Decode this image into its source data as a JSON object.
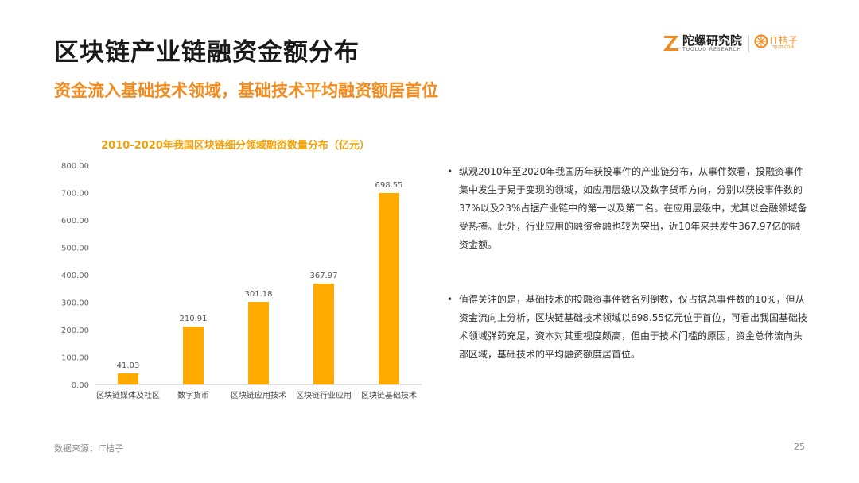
{
  "header": {
    "title": "区块链产业链融资金额分布",
    "subtitle": "资金流入基础技术领域，基础技术平均融资额居首位"
  },
  "brands": {
    "tuoluo": {
      "name": "陀螺研究院",
      "sub": "TUOLUO RESEARCH",
      "color": "#f28a1d"
    },
    "itjuzi": {
      "name": "IT桔子",
      "sub": "ITJUZI.COM",
      "color": "#f28a1d"
    }
  },
  "chart_data": {
    "type": "bar",
    "title": "2010-2020年我国区块链细分领域融资数量分布（亿元）",
    "categories": [
      "区块链媒体及社区",
      "数字货币",
      "区块链应用技术",
      "区块链行业应用",
      "区块链基础技术"
    ],
    "values": [
      41.03,
      210.91,
      301.18,
      367.97,
      698.55
    ],
    "value_labels": [
      "41.03",
      "210.91",
      "301.18",
      "367.97",
      "698.55"
    ],
    "ylim": [
      0,
      800
    ],
    "yticks": [
      "0.00",
      "100.00",
      "200.00",
      "300.00",
      "400.00",
      "500.00",
      "600.00",
      "700.00",
      "800.00"
    ],
    "bar_color": "#ffaa00",
    "grid": false,
    "xlabel": "",
    "ylabel": ""
  },
  "notes": [
    "纵观2010年至2020年我国历年获投事件的产业链分布，从事件数看，投融资事件集中发生于易于变现的领域，如应用层级以及数字货币方向，分别以获投事件数的37%以及23%占据产业链中的第一以及第二名。在应用层级中，尤其以金融领域备受热捧。此外，行业应用的融资金融也较为突出，近10年来共发生367.97亿的融资金额。",
    "值得关注的是，基础技术的投融资事件数名列倒数，仅占据总事件数的10%，但从资金流向上分析，区块链基础技术领域以698.55亿元位于首位，可看出我国基础技术领域弹药充足，资本对其重视度颇高，但由于技术门槛的原因，资金总体流向头部区域，基础技术的平均融资额度居首位。"
  ],
  "footer": {
    "source": "数据来源：IT桔子",
    "page": "25"
  }
}
